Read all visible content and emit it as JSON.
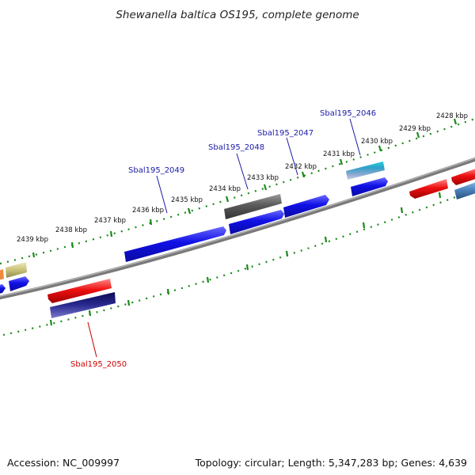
{
  "title": "Shewanella baltica OS195, complete genome",
  "footer": {
    "accession": "Accession: NC_009997",
    "summary": "Topology: circular; Length: 5,347,283 bp; Genes: 4,639"
  },
  "ticks": [
    "2428 kbp",
    "2429 kbp",
    "2430 kbp",
    "2431 kbp",
    "2432 kbp",
    "2433 kbp",
    "2434 kbp",
    "2435 kbp",
    "2436 kbp",
    "2437 kbp",
    "2438 kbp",
    "2439 kbp"
  ],
  "gene_labels": [
    {
      "name": "Sbal195_2046",
      "color": "#1a1aa6"
    },
    {
      "name": "Sbal195_2047",
      "color": "#1a1aa6"
    },
    {
      "name": "Sbal195_2048",
      "color": "#1a1aa6"
    },
    {
      "name": "Sbal195_2049",
      "color": "#1a1aa6"
    },
    {
      "name": "Sbal195_2050",
      "color": "#cc0000"
    }
  ],
  "colors": {
    "backbone": "#808080",
    "tick_ring": "#1a8a1a",
    "gene_blue": "#1010e0",
    "gene_red": "#ee1111",
    "gene_gray": "#555555",
    "gene_navy": "#14147a",
    "gene_cyan": "#22c4d0",
    "gene_khaki": "#c8c27a",
    "gene_steel": "#4a7fb8"
  }
}
